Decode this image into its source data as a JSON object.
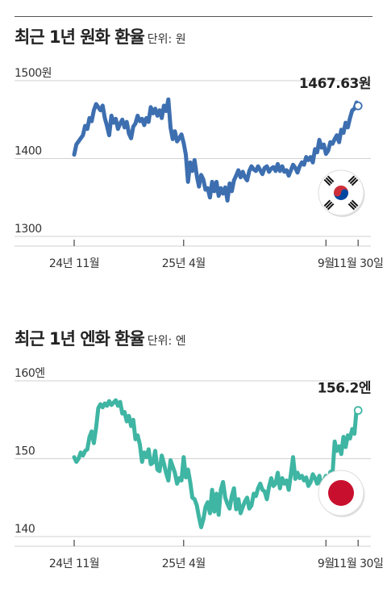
{
  "chart_data": [
    {
      "type": "line",
      "title": "최근 1년 원화 환율",
      "unit_text": "단위: 원",
      "ylim": [
        1300,
        1500
      ],
      "y_ticks": [
        {
          "value": 1500,
          "label": "1500원"
        },
        {
          "value": 1400,
          "label": "1400"
        },
        {
          "value": 1300,
          "label": "1300"
        }
      ],
      "x_range": [
        0,
        13
      ],
      "x_ticks": [
        {
          "value": 0,
          "label": "24년 11월"
        },
        {
          "value": 5,
          "label": "25년 4월"
        },
        {
          "value": 11.5,
          "label": "9월"
        },
        {
          "value": 12.97,
          "label": "11월 30일"
        }
      ],
      "end_value_label": "1467.63원",
      "color": "#3d6fb0",
      "grid": true,
      "series": [
        {
          "x": [
            0.0,
            0.1,
            0.2,
            0.4,
            0.5,
            0.6,
            0.7,
            0.8,
            0.9,
            1.0,
            1.1,
            1.2,
            1.3,
            1.4,
            1.5,
            1.6,
            1.7,
            1.8,
            1.9,
            2.0,
            2.1,
            2.2,
            2.3,
            2.4,
            2.5,
            2.6,
            2.7,
            2.8,
            2.9,
            3.0,
            3.1,
            3.2,
            3.3,
            3.4,
            3.5,
            3.6,
            3.7,
            3.8,
            3.9,
            4.0,
            4.1,
            4.2,
            4.3,
            4.4,
            4.5,
            4.6,
            4.7,
            4.8,
            4.9,
            5.0,
            5.1,
            5.2,
            5.3,
            5.4,
            5.5,
            5.6,
            5.7,
            5.8,
            5.9,
            6.0,
            6.1,
            6.2,
            6.3,
            6.4,
            6.5,
            6.6,
            6.7,
            6.8,
            6.9,
            7.0,
            7.1,
            7.2,
            7.3,
            7.4,
            7.5,
            7.6,
            7.7,
            7.8,
            7.9,
            8.0,
            8.1,
            8.2,
            8.3,
            8.4,
            8.5,
            8.6,
            8.7,
            8.8,
            8.9,
            9.0,
            9.1,
            9.2,
            9.3,
            9.4,
            9.5,
            9.6,
            9.7,
            9.8,
            9.9,
            10.0,
            10.1,
            10.2,
            10.3,
            10.4,
            10.5,
            10.6,
            10.7,
            10.8,
            10.9,
            11.0,
            11.1,
            11.2,
            11.3,
            11.4,
            11.5,
            11.6,
            11.7,
            11.8,
            11.9,
            12.0,
            12.1,
            12.2,
            12.3,
            12.4,
            12.5,
            12.6,
            12.7,
            12.8,
            12.9,
            12.97
          ],
          "values": [
            1405,
            1418,
            1422,
            1430,
            1442,
            1438,
            1452,
            1448,
            1462,
            1470,
            1466,
            1462,
            1468,
            1452,
            1442,
            1430,
            1455,
            1446,
            1451,
            1438,
            1445,
            1450,
            1440,
            1447,
            1432,
            1426,
            1441,
            1445,
            1455,
            1448,
            1451,
            1443,
            1452,
            1447,
            1466,
            1458,
            1464,
            1455,
            1462,
            1452,
            1468,
            1461,
            1476,
            1440,
            1425,
            1435,
            1422,
            1426,
            1431,
            1420,
            1405,
            1370,
            1395,
            1384,
            1398,
            1378,
            1364,
            1379,
            1373,
            1360,
            1362,
            1350,
            1370,
            1358,
            1370,
            1352,
            1362,
            1355,
            1363,
            1346,
            1368,
            1358,
            1372,
            1378,
            1385,
            1376,
            1383,
            1376,
            1372,
            1384,
            1390,
            1386,
            1384,
            1390,
            1385,
            1380,
            1388,
            1390,
            1383,
            1387,
            1389,
            1384,
            1393,
            1384,
            1390,
            1383,
            1385,
            1378,
            1385,
            1392,
            1388,
            1382,
            1390,
            1395,
            1392,
            1402,
            1398,
            1402,
            1395,
            1412,
            1408,
            1424,
            1414,
            1418,
            1406,
            1410,
            1421,
            1419,
            1425,
            1430,
            1421,
            1437,
            1433,
            1446,
            1440,
            1452,
            1462,
            1464,
            1472,
            1467.63
          ]
        }
      ]
    },
    {
      "type": "line",
      "title": "최근 1년 엔화 환율",
      "unit_text": "단위: 엔",
      "ylim": [
        140,
        160
      ],
      "y_ticks": [
        {
          "value": 160,
          "label": "160엔"
        },
        {
          "value": 150,
          "label": "150"
        },
        {
          "value": 140,
          "label": "140"
        }
      ],
      "x_range": [
        0,
        13
      ],
      "x_ticks": [
        {
          "value": 0,
          "label": "24년 11월"
        },
        {
          "value": 5,
          "label": "25년 4월"
        },
        {
          "value": 11.5,
          "label": "9월"
        },
        {
          "value": 12.97,
          "label": "11월 30일"
        }
      ],
      "end_value_label": "156.2엔",
      "color": "#3fb5a3",
      "grid": true,
      "series": [
        {
          "x": [
            0.0,
            0.1,
            0.2,
            0.3,
            0.4,
            0.5,
            0.6,
            0.7,
            0.8,
            0.9,
            1.0,
            1.1,
            1.2,
            1.3,
            1.4,
            1.5,
            1.6,
            1.7,
            1.8,
            1.9,
            2.0,
            2.1,
            2.2,
            2.3,
            2.4,
            2.5,
            2.6,
            2.7,
            2.8,
            2.9,
            3.0,
            3.1,
            3.2,
            3.3,
            3.4,
            3.5,
            3.6,
            3.7,
            3.8,
            3.9,
            4.0,
            4.1,
            4.2,
            4.3,
            4.4,
            4.5,
            4.6,
            4.7,
            4.8,
            4.9,
            5.0,
            5.1,
            5.2,
            5.3,
            5.4,
            5.5,
            5.6,
            5.7,
            5.8,
            5.9,
            6.0,
            6.1,
            6.2,
            6.3,
            6.4,
            6.5,
            6.6,
            6.7,
            6.8,
            6.9,
            7.0,
            7.1,
            7.2,
            7.3,
            7.4,
            7.5,
            7.6,
            7.7,
            7.8,
            7.9,
            8.0,
            8.1,
            8.2,
            8.3,
            8.4,
            8.5,
            8.6,
            8.7,
            8.8,
            8.9,
            9.0,
            9.1,
            9.2,
            9.3,
            9.4,
            9.5,
            9.6,
            9.7,
            9.8,
            9.9,
            10.0,
            10.1,
            10.2,
            10.3,
            10.4,
            10.5,
            10.6,
            10.7,
            10.8,
            10.9,
            11.0,
            11.1,
            11.2,
            11.3,
            11.4,
            11.5,
            11.6,
            11.7,
            11.8,
            11.9,
            12.0,
            12.1,
            12.2,
            12.3,
            12.4,
            12.5,
            12.6,
            12.7,
            12.8,
            12.9,
            12.97
          ],
          "values": [
            150.2,
            149.6,
            150.0,
            150.8,
            150.4,
            151.0,
            151.2,
            152.8,
            153.5,
            152.0,
            154.0,
            156.5,
            157.0,
            156.6,
            157.1,
            156.8,
            157.4,
            156.9,
            157.2,
            157.5,
            156.8,
            157.3,
            155.8,
            156.0,
            154.8,
            155.5,
            154.2,
            155.0,
            152.5,
            153.0,
            151.8,
            149.6,
            150.8,
            150.2,
            151.2,
            149.3,
            149.5,
            151.0,
            148.6,
            148.4,
            150.4,
            149.4,
            148.2,
            147.2,
            149.8,
            149.0,
            148.2,
            146.8,
            147.5,
            147.2,
            150.2,
            147.6,
            148.6,
            147.0,
            145.0,
            144.8,
            144.0,
            142.5,
            141.2,
            142.2,
            143.8,
            144.4,
            143.0,
            146.0,
            143.2,
            145.5,
            142.8,
            146.0,
            147.0,
            145.0,
            144.2,
            143.6,
            145.2,
            146.2,
            143.5,
            144.8,
            143.0,
            143.8,
            144.5,
            145.0,
            143.6,
            144.0,
            145.5,
            145.2,
            146.2,
            146.8,
            146.0,
            145.8,
            144.8,
            146.4,
            147.5,
            146.5,
            146.8,
            148.2,
            146.2,
            147.5,
            146.8,
            147.2,
            146.0,
            148.0,
            150.2,
            147.4,
            148.2,
            147.5,
            147.8,
            147.2,
            147.6,
            146.5,
            147.0,
            148.0,
            147.5,
            146.8,
            147.8,
            146.4,
            147.2,
            147.8,
            146.5,
            148.3,
            148.0,
            152.2,
            151.0,
            151.6,
            150.6,
            152.8,
            151.5,
            153.0,
            152.6,
            153.8,
            153.2,
            156.4,
            156.2
          ]
        }
      ]
    }
  ]
}
